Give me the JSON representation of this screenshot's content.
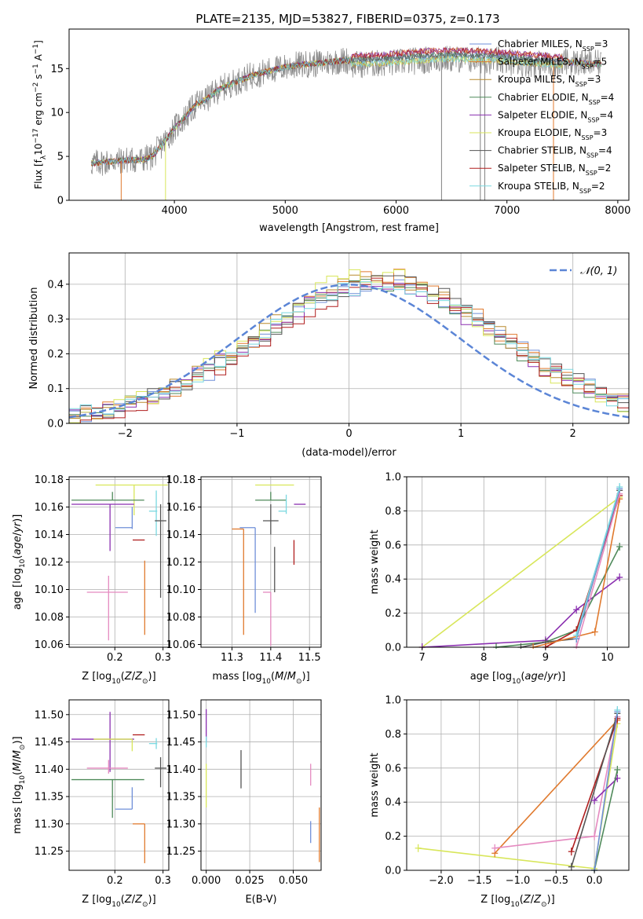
{
  "figure": {
    "title": "PLATE=2135, MJD=53827, FIBERID=0375, z=0.173"
  },
  "legend_colors": {
    "Chabrier MILES": "#6f8fd8",
    "Salpeter MILES": "#e07a2e",
    "Kroupa MILES": "#b88a2e",
    "Chabrier ELODIE": "#4f8a5a",
    "Salpeter ELODIE": "#8a2fb0",
    "Kroupa ELODIE": "#d8e65a",
    "Chabrier STELIB": "#555555",
    "Salpeter STELIB": "#b01e1e",
    "Kroupa STELIB": "#7ad8e0",
    "pink": "#e58ac0",
    "normal": "#5b85d6"
  },
  "chart_data": [
    {
      "id": "spectrum",
      "type": "line",
      "xlabel": "wavelength [Angstrom, rest frame]",
      "ylabel_parts": [
        "Flux [f",
        "λ",
        "10",
        "−17",
        " erg cm",
        "−2",
        " s",
        "−1",
        " A",
        "−1",
        "]"
      ],
      "xlim": [
        3050,
        8100
      ],
      "ylim": [
        0,
        19.5
      ],
      "xticks": [
        4000,
        5000,
        6000,
        7000,
        8000
      ],
      "yticks": [
        0,
        5,
        10,
        15
      ],
      "legend_position": "upper right",
      "series": [
        {
          "label": "Chabrier MILES",
          "nssp": "3",
          "color": "#6f8fd8"
        },
        {
          "label": "Salpeter MILES",
          "nssp": "5",
          "color": "#e07a2e"
        },
        {
          "label": "Kroupa MILES",
          "nssp": "3",
          "color": "#b88a2e"
        },
        {
          "label": "Chabrier ELODIE",
          "nssp": "4",
          "color": "#4f8a5a"
        },
        {
          "label": "Salpeter ELODIE",
          "nssp": "4",
          "color": "#8a2fb0"
        },
        {
          "label": "Kroupa ELODIE",
          "nssp": "3",
          "color": "#d8e65a"
        },
        {
          "label": "Chabrier STELIB",
          "nssp": "4",
          "color": "#555555"
        },
        {
          "label": "Salpeter STELIB",
          "nssp": "2",
          "color": "#b01e1e"
        },
        {
          "label": "Kroupa STELIB",
          "nssp": "2",
          "color": "#7ad8e0"
        }
      ],
      "continuum": {
        "x": [
          3250,
          3400,
          3500,
          3600,
          3700,
          3800,
          3900,
          4000,
          4100,
          4200,
          4300,
          4400,
          4500,
          4700,
          4900,
          5100,
          5300,
          5500,
          5700,
          5900,
          6100,
          6300,
          6500,
          6700,
          6900,
          7100,
          7300,
          7500,
          7700,
          7850
        ],
        "y": [
          4.2,
          4.4,
          4.5,
          4.6,
          4.6,
          5.0,
          6.5,
          8.2,
          9.5,
          11.0,
          11.6,
          12.6,
          13.2,
          14.2,
          14.9,
          15.4,
          15.6,
          15.9,
          16.0,
          16.1,
          16.3,
          16.5,
          16.6,
          16.5,
          16.4,
          16.2,
          16.0,
          15.8,
          15.6,
          15.5
        ]
      },
      "spike_x": [
        3520,
        3920,
        6410,
        6760,
        6800,
        7420
      ]
    },
    {
      "id": "residuals",
      "type": "line",
      "xlabel": "(data-model)/error",
      "ylabel": "Normed distribution",
      "xlim": [
        -2.5,
        2.5
      ],
      "ylim": [
        0,
        0.49
      ],
      "xticks": [
        -2,
        -1,
        0,
        1,
        2
      ],
      "yticks": [
        0.0,
        0.1,
        0.2,
        0.3,
        0.4
      ],
      "grid": true,
      "legend": "𝒩(0, 1)",
      "legend_position": "upper right",
      "normal_color": "#5b85d6"
    },
    {
      "id": "age-vs-Z",
      "type": "scatter",
      "xlabel": "Z [log10(Z/Z⊙)]",
      "ylabel": "age  [log10(age/yr)]",
      "xlim": [
        0.105,
        0.312
      ],
      "ylim": [
        10.058,
        10.182
      ],
      "xticks": [
        0.2,
        0.3
      ],
      "yticks": [
        10.06,
        10.08,
        10.1,
        10.12,
        10.14,
        10.16,
        10.18
      ],
      "grid": true,
      "points": [
        {
          "color": "#7ad8e0",
          "x": 0.286,
          "y": 10.157,
          "xerr": [
            0.015,
            0.002
          ],
          "yerr": [
            0.018,
            0.015
          ]
        },
        {
          "color": "#d8e65a",
          "x": 0.24,
          "y": 10.176,
          "xerr": [
            0.08,
            0.07
          ],
          "yerr": [
            0.022,
            0.0
          ]
        },
        {
          "color": "#4f8a5a",
          "x": 0.195,
          "y": 10.165,
          "xerr": [
            0.085,
            0.066
          ],
          "yerr": [
            0.0,
            0.006
          ]
        },
        {
          "color": "#8a2fb0",
          "x": 0.19,
          "y": 10.162,
          "xerr": [
            0.08,
            0.05
          ],
          "yerr": [
            0.034,
            0.0
          ]
        },
        {
          "color": "#555555",
          "x": 0.295,
          "y": 10.15,
          "xerr": [
            0.012,
            0.012
          ],
          "yerr": [
            0.056,
            0.012
          ]
        },
        {
          "color": "#b01e1e",
          "x": 0.262,
          "y": 10.136,
          "xerr": [
            0.025,
            0.0
          ],
          "yerr": [
            0.0,
            0.0
          ]
        },
        {
          "color": "#6f8fd8",
          "x": 0.236,
          "y": 10.145,
          "xerr": [
            0.035,
            0.0
          ],
          "yerr": [
            0.001,
            0.015
          ]
        },
        {
          "color": "#e07a2e",
          "x": 0.262,
          "y": 10.121,
          "xerr": [
            0.0,
            0.0
          ],
          "yerr": [
            0.054,
            0.0
          ]
        },
        {
          "color": "#e58ac0",
          "x": 0.187,
          "y": 10.098,
          "xerr": [
            0.045,
            0.04
          ],
          "yerr": [
            0.035,
            0.012
          ]
        }
      ]
    },
    {
      "id": "age-vs-mass",
      "type": "scatter",
      "xlabel": "mass [log10(M/M⊙)]",
      "ylabel": "",
      "xlim": [
        11.22,
        11.53
      ],
      "ylim": [
        10.058,
        10.182
      ],
      "xticks": [
        11.3,
        11.4,
        11.5
      ],
      "yticks": [
        10.06,
        10.08,
        10.1,
        10.12,
        10.14,
        10.16,
        10.18
      ],
      "grid": true,
      "points": [
        {
          "color": "#d8e65a",
          "x": 11.43,
          "y": 10.176,
          "xerr": [
            0.07,
            0.03
          ],
          "yerr": [
            0.0,
            0.0
          ]
        },
        {
          "color": "#4f8a5a",
          "x": 11.4,
          "y": 10.165,
          "xerr": [
            0.04,
            0.04
          ],
          "yerr": [
            0.0,
            0.006
          ]
        },
        {
          "color": "#8a2fb0",
          "x": 11.46,
          "y": 10.162,
          "xerr": [
            0.0,
            0.03
          ],
          "yerr": [
            0.0,
            0.0
          ]
        },
        {
          "color": "#7ad8e0",
          "x": 11.44,
          "y": 10.157,
          "xerr": [
            0.02,
            0.0
          ],
          "yerr": [
            0.002,
            0.012
          ]
        },
        {
          "color": "#555555",
          "x": 11.4,
          "y": 10.15,
          "xerr": [
            0.02,
            0.02
          ],
          "yerr": [
            0.01,
            0.012
          ]
        },
        {
          "color": "#b01e1e",
          "x": 11.46,
          "y": 10.136,
          "xerr": [
            0.0,
            0.0
          ],
          "yerr": [
            0.018,
            0.0
          ]
        },
        {
          "color": "#6f8fd8",
          "x": 11.36,
          "y": 10.145,
          "xerr": [
            0.04,
            0.0
          ],
          "yerr": [
            0.062,
            0.0
          ]
        },
        {
          "color": "#e07a2e",
          "x": 11.33,
          "y": 10.144,
          "xerr": [
            0.03,
            0.0
          ],
          "yerr": [
            0.077,
            0.0
          ]
        },
        {
          "color": "#555555",
          "x": 11.41,
          "y": 10.121,
          "xerr": [
            0.0,
            0.0
          ],
          "yerr": [
            0.023,
            0.01
          ]
        },
        {
          "color": "#e58ac0",
          "x": 11.4,
          "y": 10.098,
          "xerr": [
            0.02,
            0.0
          ],
          "yerr": [
            0.039,
            0.0
          ]
        }
      ]
    },
    {
      "id": "weight-vs-age",
      "type": "line",
      "xlabel": "age  [log10(age/yr)]",
      "ylabel": "mass weight",
      "xlim": [
        6.75,
        10.35
      ],
      "ylim": [
        0,
        1.0
      ],
      "xticks": [
        7,
        8,
        9,
        10
      ],
      "yticks": [
        0.0,
        0.2,
        0.4,
        0.6,
        0.8,
        1.0
      ],
      "grid": true,
      "series": [
        {
          "color": "#d8e65a",
          "x": [
            7.0,
            10.2
          ],
          "y": [
            0.0,
            0.88
          ]
        },
        {
          "color": "#8a2fb0",
          "x": [
            7.0,
            9.0,
            9.5,
            10.2
          ],
          "y": [
            0.0,
            0.04,
            0.22,
            0.41
          ]
        },
        {
          "color": "#4f8a5a",
          "x": [
            8.2,
            9.0,
            9.5,
            10.2
          ],
          "y": [
            0.0,
            0.03,
            0.1,
            0.59
          ]
        },
        {
          "color": "#555555",
          "x": [
            8.6,
            9.0,
            9.5,
            10.2
          ],
          "y": [
            0.0,
            0.03,
            0.05,
            0.92
          ]
        },
        {
          "color": "#b01e1e",
          "x": [
            9.0,
            9.5,
            10.2
          ],
          "y": [
            0.0,
            0.1,
            0.89
          ]
        },
        {
          "color": "#e07a2e",
          "x": [
            8.8,
            9.8,
            10.2
          ],
          "y": [
            0.0,
            0.09,
            0.87
          ]
        },
        {
          "color": "#e58ac0",
          "x": [
            9.5,
            10.2
          ],
          "y": [
            0.0,
            0.9
          ]
        },
        {
          "color": "#6f8fd8",
          "x": [
            9.5,
            10.2
          ],
          "y": [
            0.05,
            0.93
          ]
        },
        {
          "color": "#7ad8e0",
          "x": [
            9.5,
            10.2
          ],
          "y": [
            0.07,
            0.94
          ]
        }
      ]
    },
    {
      "id": "mass-vs-Z",
      "type": "scatter",
      "xlabel": "Z [log10(Z/Z⊙)]",
      "ylabel": "mass [log10(M/M⊙)]",
      "xlim": [
        0.105,
        0.312
      ],
      "ylim": [
        11.215,
        11.527
      ],
      "xticks": [
        0.2,
        0.3
      ],
      "yticks": [
        11.25,
        11.3,
        11.35,
        11.4,
        11.45,
        11.5
      ],
      "grid": true,
      "points": [
        {
          "color": "#8a2fb0",
          "x": 0.19,
          "y": 11.455,
          "xerr": [
            0.08,
            0.05
          ],
          "yerr": [
            0.06,
            0.05
          ]
        },
        {
          "color": "#b01e1e",
          "x": 0.262,
          "y": 11.463,
          "xerr": [
            0.025,
            0.0
          ],
          "yerr": [
            0.0,
            0.0
          ]
        },
        {
          "color": "#7ad8e0",
          "x": 0.286,
          "y": 11.447,
          "xerr": [
            0.015,
            0.002
          ],
          "yerr": [
            0.01,
            0.01
          ]
        },
        {
          "color": "#d8e65a",
          "x": 0.236,
          "y": 11.455,
          "xerr": [
            0.08,
            0.0
          ],
          "yerr": [
            0.022,
            0.0
          ]
        },
        {
          "color": "#e58ac0",
          "x": 0.187,
          "y": 11.402,
          "xerr": [
            0.045,
            0.04
          ],
          "yerr": [
            0.01,
            0.015
          ]
        },
        {
          "color": "#555555",
          "x": 0.295,
          "y": 11.402,
          "xerr": [
            0.012,
            0.012
          ],
          "yerr": [
            0.035,
            0.02
          ]
        },
        {
          "color": "#4f8a5a",
          "x": 0.195,
          "y": 11.381,
          "xerr": [
            0.085,
            0.066
          ],
          "yerr": [
            0.07,
            0.0
          ]
        },
        {
          "color": "#6f8fd8",
          "x": 0.236,
          "y": 11.327,
          "xerr": [
            0.035,
            0.0
          ],
          "yerr": [
            0.0,
            0.04
          ]
        },
        {
          "color": "#e07a2e",
          "x": 0.262,
          "y": 11.3,
          "xerr": [
            0.025,
            0.0
          ],
          "yerr": [
            0.072,
            0.0
          ]
        }
      ]
    },
    {
      "id": "mass-vs-EBV",
      "type": "scatter",
      "xlabel": "E(B-V)",
      "ylabel": "",
      "xlim": [
        -0.003,
        0.066
      ],
      "ylim": [
        11.215,
        11.527
      ],
      "xticks": [
        0.0,
        0.025,
        0.05
      ],
      "yticks": [
        11.25,
        11.3,
        11.35,
        11.4,
        11.45,
        11.5
      ],
      "grid": true,
      "points": [
        {
          "color": "#8a2fb0",
          "x": 0.0,
          "y": 11.48,
          "xerr": [
            0.0,
            0.0
          ],
          "yerr": [
            0.03,
            0.03
          ]
        },
        {
          "color": "#d8e65a",
          "x": 0.0,
          "y": 11.37,
          "xerr": [
            0.0,
            0.0
          ],
          "yerr": [
            0.04,
            0.04
          ]
        },
        {
          "color": "#7ad8e0",
          "x": 0.0,
          "y": 11.45,
          "xerr": [
            0.0,
            0.0
          ],
          "yerr": [
            0.01,
            0.01
          ]
        },
        {
          "color": "#555555",
          "x": 0.02,
          "y": 11.4,
          "xerr": [
            0.0,
            0.0
          ],
          "yerr": [
            0.035,
            0.035
          ]
        },
        {
          "color": "#e58ac0",
          "x": 0.06,
          "y": 11.39,
          "xerr": [
            0.0,
            0.0
          ],
          "yerr": [
            0.02,
            0.02
          ]
        },
        {
          "color": "#6f8fd8",
          "x": 0.06,
          "y": 11.305,
          "xerr": [
            0.0,
            0.0
          ],
          "yerr": [
            0.04,
            0.0
          ]
        },
        {
          "color": "#e07a2e",
          "x": 0.065,
          "y": 11.28,
          "xerr": [
            0.0,
            0.0
          ],
          "yerr": [
            0.05,
            0.05
          ]
        }
      ]
    },
    {
      "id": "weight-vs-Z",
      "type": "line",
      "xlabel": "Z [log10(Z/Z⊙)]",
      "ylabel": "mass weight",
      "xlim": [
        -2.45,
        0.45
      ],
      "ylim": [
        0,
        1.0
      ],
      "xticks": [
        -2.0,
        -1.5,
        -1.0,
        -0.5,
        0.0
      ],
      "yticks": [
        0.0,
        0.2,
        0.4,
        0.6,
        0.8,
        1.0
      ],
      "grid": true,
      "series": [
        {
          "color": "#d8e65a",
          "x": [
            -2.3,
            0.0,
            0.3
          ],
          "y": [
            0.13,
            0.01,
            0.86
          ]
        },
        {
          "color": "#e07a2e",
          "x": [
            -1.3,
            0.3
          ],
          "y": [
            0.1,
            0.88
          ]
        },
        {
          "color": "#e58ac0",
          "x": [
            -1.3,
            0.0,
            0.3
          ],
          "y": [
            0.13,
            0.2,
            0.9
          ]
        },
        {
          "color": "#b01e1e",
          "x": [
            -0.3,
            0.3
          ],
          "y": [
            0.11,
            0.89
          ]
        },
        {
          "color": "#555555",
          "x": [
            -0.3,
            0.3
          ],
          "y": [
            0.02,
            0.92
          ]
        },
        {
          "color": "#8a2fb0",
          "x": [
            0.0,
            0.3
          ],
          "y": [
            0.41,
            0.54
          ]
        },
        {
          "color": "#4f8a5a",
          "x": [
            0.0,
            0.3
          ],
          "y": [
            0.0,
            0.59
          ]
        },
        {
          "color": "#6f8fd8",
          "x": [
            0.0,
            0.3
          ],
          "y": [
            0.0,
            0.93
          ]
        },
        {
          "color": "#7ad8e0",
          "x": [
            0.3
          ],
          "y": [
            0.94
          ]
        }
      ]
    }
  ]
}
